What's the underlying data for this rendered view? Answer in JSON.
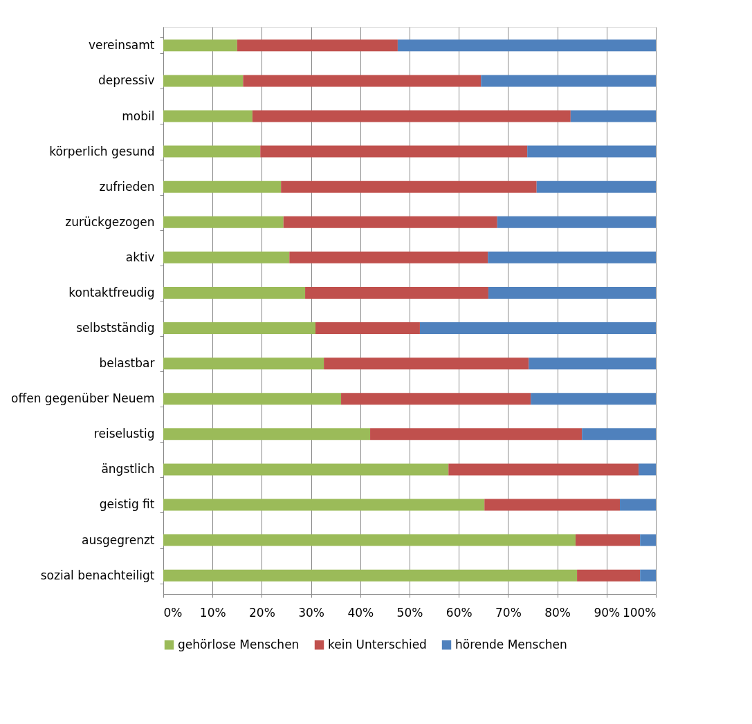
{
  "chart_data": {
    "type": "bar",
    "orientation": "horizontal",
    "stacked": true,
    "categories": [
      "vereinsamt",
      "depressiv",
      "mobil",
      "körperlich gesund",
      "zufrieden",
      "zurückgezogen",
      "aktiv",
      "kontaktfreudig",
      "selbstständig",
      "belastbar",
      "offen gegenüber Neuem",
      "reiselustig",
      "ängstlich",
      "geistig fit",
      "ausgegrenzt",
      "sozial benachteiligt"
    ],
    "series": [
      {
        "name": "gehörlose Menschen",
        "color": "#9bbb59",
        "values": [
          15.0,
          16.2,
          18.1,
          19.7,
          23.9,
          24.4,
          25.6,
          28.8,
          30.9,
          32.6,
          36.1,
          42.0,
          57.9,
          65.2,
          83.7,
          84.0
        ]
      },
      {
        "name": "kein Unterschied",
        "color": "#c0504d",
        "values": [
          32.6,
          48.3,
          64.6,
          54.2,
          51.9,
          43.4,
          40.3,
          37.2,
          21.2,
          41.6,
          38.5,
          43.0,
          38.6,
          27.5,
          13.1,
          12.8
        ]
      },
      {
        "name": "hörende Menschen",
        "color": "#4f81bd",
        "values": [
          52.4,
          35.5,
          17.3,
          26.1,
          24.2,
          32.2,
          34.1,
          34.0,
          47.9,
          25.8,
          25.4,
          15.0,
          3.5,
          7.3,
          3.2,
          3.2
        ]
      }
    ],
    "xlim": [
      0,
      100
    ],
    "xticks": [
      {
        "value": 0,
        "label": "0%"
      },
      {
        "value": 10,
        "label": "10%"
      },
      {
        "value": 20,
        "label": "20%"
      },
      {
        "value": 30,
        "label": "30%"
      },
      {
        "value": 40,
        "label": "40%"
      },
      {
        "value": 50,
        "label": "50%"
      },
      {
        "value": 60,
        "label": "60%"
      },
      {
        "value": 70,
        "label": "70%"
      },
      {
        "value": 80,
        "label": "80%"
      },
      {
        "value": 90,
        "label": "90%"
      },
      {
        "value": 100,
        "label": "100%"
      }
    ],
    "grid": "x",
    "legend": "bottom"
  }
}
